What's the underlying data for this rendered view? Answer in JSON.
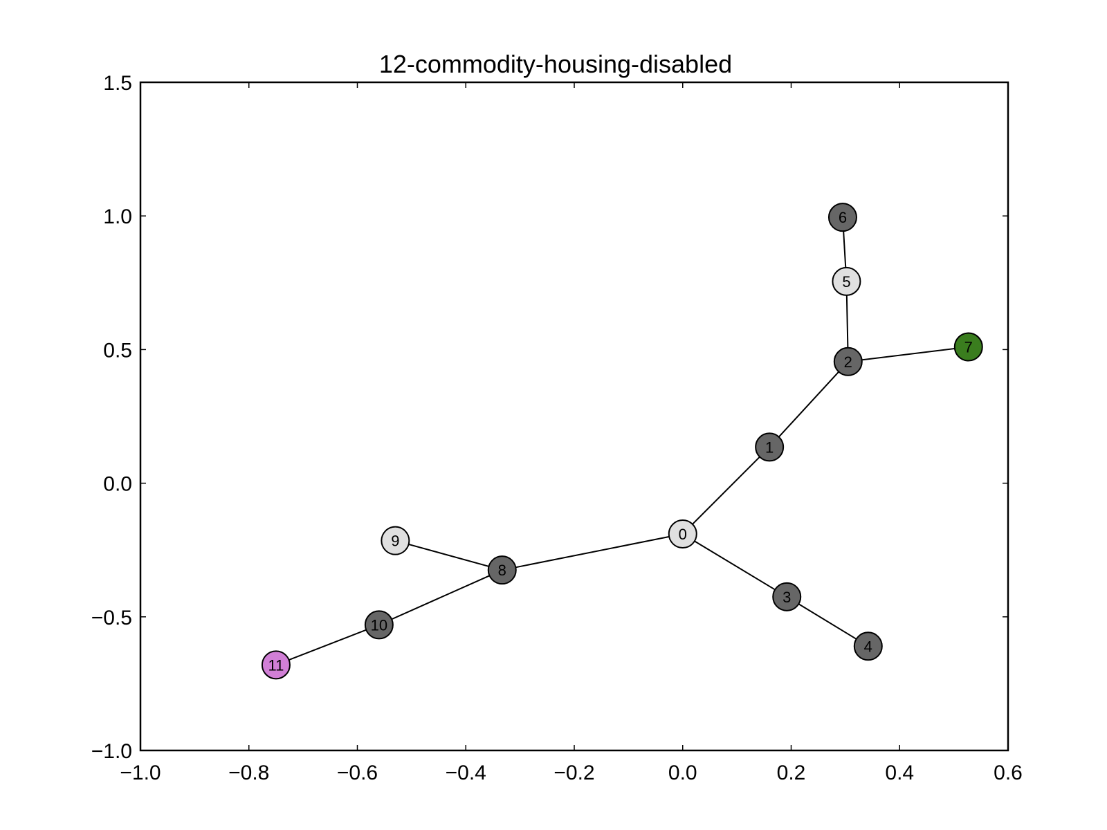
{
  "chart_data": {
    "type": "network-graph",
    "title": "12-commodity-housing-disabled",
    "xlim": [
      -1.0,
      0.6
    ],
    "ylim": [
      -1.0,
      1.5
    ],
    "x_ticks": [
      -1.0,
      -0.8,
      -0.6,
      -0.4,
      -0.2,
      0.0,
      0.2,
      0.4,
      0.6
    ],
    "y_ticks": [
      -1.0,
      -0.5,
      0.0,
      0.5,
      1.0,
      1.5
    ],
    "x_tick_labels": [
      "−1.0",
      "−0.8",
      "−0.6",
      "−0.4",
      "−0.2",
      "0.0",
      "0.2",
      "0.4",
      "0.6"
    ],
    "y_tick_labels": [
      "−1.0",
      "−0.5",
      "0.0",
      "0.5",
      "1.0",
      "1.5"
    ],
    "nodes": [
      {
        "id": "0",
        "x": 0.0,
        "y": -0.19,
        "color": "#e0e0e0"
      },
      {
        "id": "1",
        "x": 0.16,
        "y": 0.135,
        "color": "#666666"
      },
      {
        "id": "2",
        "x": 0.305,
        "y": 0.455,
        "color": "#666666"
      },
      {
        "id": "3",
        "x": 0.192,
        "y": -0.425,
        "color": "#666666"
      },
      {
        "id": "4",
        "x": 0.342,
        "y": -0.61,
        "color": "#666666"
      },
      {
        "id": "5",
        "x": 0.302,
        "y": 0.755,
        "color": "#e0e0e0"
      },
      {
        "id": "6",
        "x": 0.295,
        "y": 0.995,
        "color": "#666666"
      },
      {
        "id": "7",
        "x": 0.527,
        "y": 0.51,
        "color": "#3a7d1e"
      },
      {
        "id": "8",
        "x": -0.333,
        "y": -0.325,
        "color": "#666666"
      },
      {
        "id": "9",
        "x": -0.53,
        "y": -0.215,
        "color": "#e0e0e0"
      },
      {
        "id": "10",
        "x": -0.56,
        "y": -0.53,
        "color": "#666666"
      },
      {
        "id": "11",
        "x": -0.75,
        "y": -0.68,
        "color": "#d17fd6"
      }
    ],
    "edges": [
      [
        "0",
        "1"
      ],
      [
        "1",
        "2"
      ],
      [
        "2",
        "5"
      ],
      [
        "5",
        "6"
      ],
      [
        "2",
        "7"
      ],
      [
        "0",
        "3"
      ],
      [
        "3",
        "4"
      ],
      [
        "0",
        "8"
      ],
      [
        "8",
        "9"
      ],
      [
        "8",
        "10"
      ],
      [
        "10",
        "11"
      ]
    ]
  }
}
